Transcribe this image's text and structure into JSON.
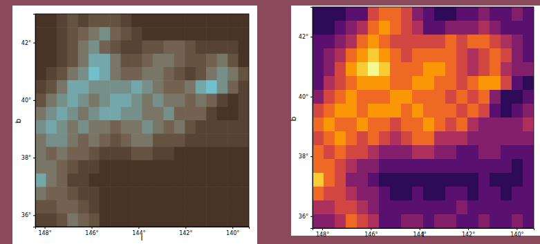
{
  "chart_data": [
    {
      "type": "heatmap",
      "color": "brown-cyan",
      "x_label": "l",
      "y_label": "b",
      "xlim": [
        148.4,
        139.3
      ],
      "ylim": [
        35.6,
        43.0
      ],
      "xticks": [
        {
          "value": 148,
          "label": "148°"
        },
        {
          "value": 146,
          "label": "146°"
        },
        {
          "value": 144,
          "label": "144°"
        },
        {
          "value": 142,
          "label": "142°"
        },
        {
          "value": 140,
          "label": "140°"
        }
      ],
      "yticks": [
        {
          "value": 36,
          "label": "36°"
        },
        {
          "value": 38,
          "label": "38°"
        },
        {
          "value": 40,
          "label": "40°"
        },
        {
          "value": 42,
          "label": "42°"
        }
      ],
      "clim": [
        0,
        9
      ],
      "cells": [
        [
          1,
          1,
          2,
          3,
          2,
          3,
          3,
          3,
          2,
          1,
          1,
          1,
          1,
          1,
          1,
          1,
          1,
          1,
          1,
          1
        ],
        [
          1,
          1,
          2,
          3,
          4,
          5,
          6,
          4,
          3,
          2,
          1,
          1,
          1,
          1,
          1,
          1,
          1,
          1,
          1,
          1
        ],
        [
          1,
          1,
          2,
          3,
          5,
          6,
          4,
          3,
          2,
          2,
          3,
          3,
          4,
          4,
          3,
          2,
          2,
          2,
          2,
          1
        ],
        [
          1,
          1,
          2,
          3,
          5,
          7,
          7,
          5,
          3,
          3,
          4,
          5,
          5,
          4,
          3,
          3,
          4,
          5,
          3,
          1
        ],
        [
          1,
          2,
          3,
          5,
          6,
          8,
          7,
          5,
          4,
          4,
          5,
          5,
          4,
          3,
          2,
          3,
          5,
          6,
          5,
          3
        ],
        [
          2,
          3,
          5,
          7,
          7,
          6,
          6,
          6,
          6,
          7,
          6,
          5,
          4,
          4,
          5,
          7,
          8,
          6,
          4,
          2
        ],
        [
          3,
          5,
          6,
          7,
          6,
          5,
          6,
          7,
          7,
          6,
          5,
          6,
          5,
          5,
          4,
          5,
          4,
          2,
          1,
          2
        ],
        [
          5,
          6,
          7,
          6,
          5,
          6,
          7,
          7,
          6,
          6,
          5,
          5,
          6,
          4,
          4,
          4,
          2,
          1,
          1,
          2
        ],
        [
          6,
          7,
          6,
          5,
          6,
          5,
          5,
          4,
          5,
          5,
          6,
          5,
          4,
          5,
          3,
          2,
          2,
          2,
          2,
          2
        ],
        [
          5,
          6,
          6,
          5,
          4,
          5,
          4,
          3,
          4,
          5,
          5,
          3,
          3,
          3,
          2,
          2,
          2,
          2,
          2,
          2
        ],
        [
          5,
          4,
          5,
          4,
          4,
          3,
          2,
          2,
          2,
          3,
          3,
          2,
          2,
          1,
          1,
          1,
          1,
          1,
          1,
          1
        ],
        [
          5,
          5,
          4,
          3,
          2,
          2,
          1,
          1,
          1,
          1,
          1,
          1,
          1,
          1,
          1,
          1,
          1,
          1,
          1,
          1
        ],
        [
          7,
          5,
          4,
          2,
          2,
          1,
          1,
          1,
          1,
          1,
          1,
          1,
          1,
          1,
          1,
          1,
          1,
          1,
          1,
          1
        ],
        [
          5,
          4,
          4,
          3,
          2,
          2,
          1,
          1,
          1,
          1,
          1,
          1,
          1,
          1,
          1,
          1,
          1,
          1,
          1,
          1
        ],
        [
          3,
          3,
          4,
          4,
          3,
          2,
          1,
          1,
          1,
          1,
          1,
          1,
          1,
          1,
          1,
          1,
          1,
          1,
          1,
          1
        ],
        [
          2,
          2,
          3,
          5,
          4,
          3,
          1,
          1,
          1,
          1,
          1,
          1,
          1,
          1,
          1,
          1,
          1,
          1,
          1,
          1
        ]
      ]
    },
    {
      "type": "heatmap",
      "color": "inferno",
      "x_label": "l",
      "y_label": "b",
      "xlim": [
        148.4,
        139.3
      ],
      "ylim": [
        35.6,
        43.0
      ],
      "xticks": [
        {
          "value": 148,
          "label": "148°"
        },
        {
          "value": 146,
          "label": "146°"
        },
        {
          "value": 144,
          "label": "144°"
        },
        {
          "value": 142,
          "label": "142°"
        },
        {
          "value": 140,
          "label": "140°"
        }
      ],
      "yticks": [
        {
          "value": 36,
          "label": "36°"
        },
        {
          "value": 38,
          "label": "38°"
        },
        {
          "value": 40,
          "label": "40°"
        },
        {
          "value": 42,
          "label": "42°"
        }
      ],
      "clim": [
        0,
        9
      ],
      "cells": [
        [
          1,
          1,
          1,
          2,
          2,
          5,
          6,
          6,
          5,
          3,
          2,
          1,
          1,
          2,
          2,
          3,
          2,
          2,
          3,
          2
        ],
        [
          1,
          1,
          2,
          3,
          4,
          6,
          7,
          6,
          5,
          4,
          2,
          2,
          3,
          3,
          3,
          4,
          3,
          2,
          2,
          2
        ],
        [
          2,
          2,
          3,
          4,
          6,
          7,
          6,
          5,
          5,
          5,
          5,
          5,
          6,
          5,
          6,
          6,
          5,
          4,
          3,
          2
        ],
        [
          2,
          3,
          4,
          6,
          7,
          8,
          7,
          6,
          5,
          6,
          6,
          6,
          6,
          5,
          4,
          5,
          6,
          5,
          3,
          2
        ],
        [
          2,
          3,
          5,
          7,
          8,
          9,
          8,
          6,
          6,
          6,
          7,
          7,
          6,
          5,
          4,
          5,
          6,
          4,
          3,
          3
        ],
        [
          2,
          4,
          5,
          6,
          7,
          7,
          7,
          6,
          6,
          7,
          7,
          6,
          6,
          5,
          6,
          7,
          7,
          5,
          2,
          1
        ],
        [
          3,
          5,
          6,
          7,
          6,
          6,
          6,
          7,
          7,
          6,
          6,
          6,
          5,
          6,
          5,
          6,
          3,
          1,
          1,
          2
        ],
        [
          5,
          6,
          7,
          7,
          6,
          7,
          7,
          7,
          6,
          7,
          6,
          6,
          6,
          5,
          6,
          5,
          2,
          1,
          2,
          3
        ],
        [
          6,
          7,
          6,
          6,
          7,
          6,
          6,
          5,
          6,
          6,
          7,
          6,
          5,
          6,
          4,
          3,
          3,
          3,
          3,
          4
        ],
        [
          5,
          6,
          7,
          6,
          5,
          6,
          5,
          4,
          5,
          6,
          6,
          4,
          4,
          4,
          3,
          3,
          3,
          3,
          3,
          3
        ],
        [
          6,
          5,
          6,
          5,
          5,
          4,
          3,
          3,
          3,
          4,
          4,
          3,
          3,
          2,
          2,
          3,
          3,
          2,
          2,
          2
        ],
        [
          6,
          6,
          5,
          4,
          3,
          3,
          2,
          2,
          2,
          2,
          2,
          2,
          2,
          2,
          2,
          2,
          2,
          2,
          1,
          2
        ],
        [
          8,
          6,
          5,
          3,
          3,
          2,
          1,
          1,
          1,
          1,
          1,
          1,
          1,
          1,
          1,
          2,
          1,
          1,
          1,
          2
        ],
        [
          6,
          5,
          5,
          4,
          3,
          3,
          2,
          1,
          1,
          2,
          1,
          1,
          2,
          2,
          1,
          2,
          2,
          1,
          2,
          2
        ],
        [
          4,
          4,
          5,
          5,
          4,
          3,
          2,
          2,
          2,
          2,
          2,
          2,
          2,
          3,
          2,
          2,
          2,
          2,
          2,
          2
        ],
        [
          3,
          3,
          4,
          6,
          5,
          4,
          2,
          2,
          3,
          3,
          2,
          3,
          3,
          2,
          2,
          3,
          2,
          2,
          3,
          2
        ]
      ]
    }
  ]
}
